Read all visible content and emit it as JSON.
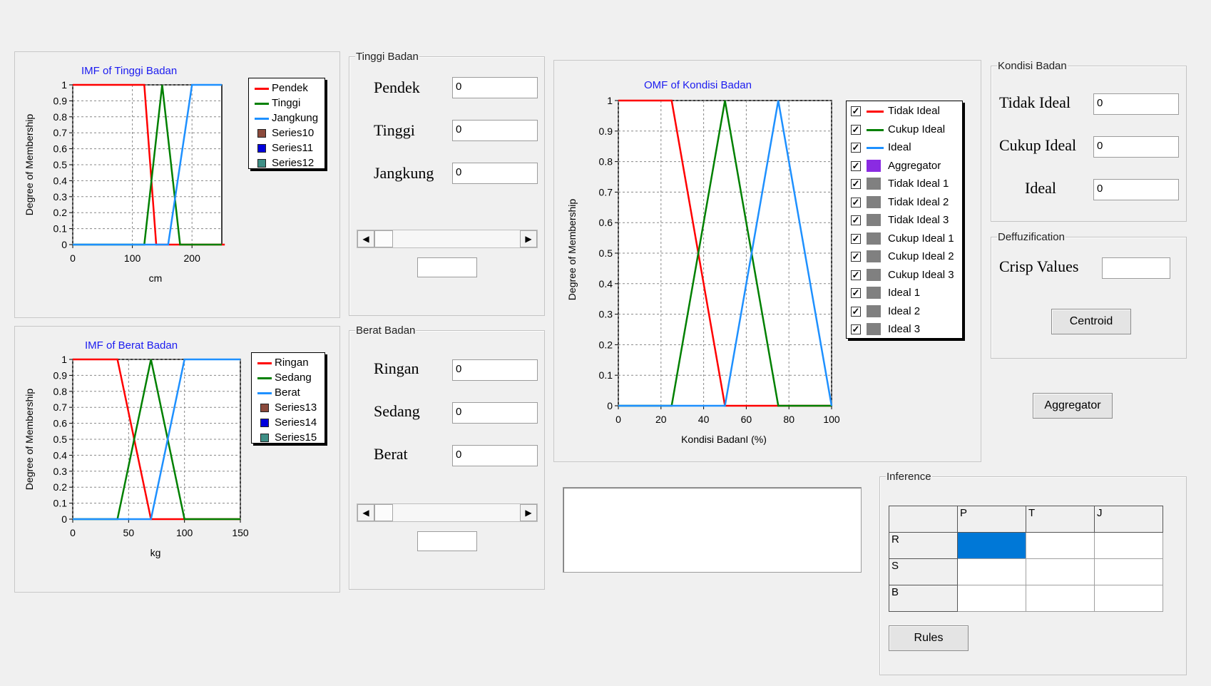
{
  "imf_tinggi": {
    "title": "IMF of Tinggi Badan",
    "xlabel": "cm",
    "ylabel": "Degree of Membership",
    "yticks": [
      "1",
      "0.9",
      "0.8",
      "0.7",
      "0.6",
      "0.5",
      "0.4",
      "0.3",
      "0.2",
      "0.1",
      "0"
    ],
    "xticks": [
      "0",
      "100",
      "200"
    ],
    "legend": [
      "Pendek",
      "Tinggi",
      "Jangkung",
      "Series10",
      "Series11",
      "Series12"
    ]
  },
  "imf_berat": {
    "title": "IMF of Berat Badan",
    "xlabel": "kg",
    "ylabel": "Degree of Membership",
    "yticks": [
      "1",
      "0.9",
      "0.8",
      "0.7",
      "0.6",
      "0.5",
      "0.4",
      "0.3",
      "0.2",
      "0.1",
      "0"
    ],
    "xticks": [
      "0",
      "50",
      "100",
      "150"
    ],
    "legend": [
      "Ringan",
      "Sedang",
      "Berat",
      "Series13",
      "Series14",
      "Series15"
    ]
  },
  "omf_kondisi": {
    "title": "OMF of Kondisi Badan",
    "xlabel": "Kondisi BadanI (%)",
    "ylabel": "Degree of Membership",
    "yticks": [
      "1",
      "0.9",
      "0.8",
      "0.7",
      "0.6",
      "0.5",
      "0.4",
      "0.3",
      "0.2",
      "0.1",
      "0"
    ],
    "xticks": [
      "0",
      "20",
      "40",
      "60",
      "80",
      "100"
    ],
    "legend": [
      "Tidak Ideal",
      "Cukup Ideal",
      "Ideal",
      "Aggregator",
      "Tidak Ideal 1",
      "Tidak Ideal 2",
      "Tidak Ideal 3",
      "Cukup Ideal 1",
      "Cukup Ideal 2",
      "Cukup Ideal 3",
      "Ideal 1",
      "Ideal 2",
      "Ideal 3"
    ]
  },
  "tinggi_group": {
    "legend": "Tinggi Badan",
    "labels": [
      "Pendek",
      "Tinggi",
      "Jangkung"
    ],
    "values": [
      "0",
      "0",
      "0"
    ],
    "extra_value": ""
  },
  "berat_group": {
    "legend": "Berat Badan",
    "labels": [
      "Ringan",
      "Sedang",
      "Berat"
    ],
    "values": [
      "0",
      "0",
      "0"
    ],
    "extra_value": ""
  },
  "kondisi_group": {
    "legend": "Kondisi Badan",
    "labels": [
      "Tidak Ideal",
      "Cukup Ideal",
      "Ideal"
    ],
    "values": [
      "0",
      "0",
      "0"
    ]
  },
  "defuzz_group": {
    "legend": "Deffuzification",
    "crisp_label": "Crisp Values",
    "crisp_value": "",
    "centroid_button": "Centroid"
  },
  "aggregator_button": "Aggregator",
  "output_text": "",
  "inference_group": {
    "legend": "Inference",
    "columns": [
      "",
      "P",
      "T",
      "J"
    ],
    "rows": [
      {
        "label": "R",
        "cells": [
          "",
          "",
          ""
        ]
      },
      {
        "label": "S",
        "cells": [
          "",
          "",
          ""
        ]
      },
      {
        "label": "B",
        "cells": [
          "",
          "",
          ""
        ]
      }
    ],
    "rules_button": "Rules"
  },
  "chart_data": [
    {
      "type": "line",
      "title": "IMF of Tinggi Badan",
      "xlabel": "cm",
      "ylabel": "Degree of Membership",
      "xlim": [
        0,
        250
      ],
      "ylim": [
        0,
        1
      ],
      "grid": true,
      "legend_position": "top-right",
      "series": [
        {
          "name": "Pendek",
          "color": "#ff0000",
          "x": [
            0,
            120,
            140,
            255
          ],
          "y": [
            1,
            1,
            0,
            0
          ]
        },
        {
          "name": "Tinggi",
          "color": "#008000",
          "x": [
            0,
            120,
            150,
            180,
            250
          ],
          "y": [
            0,
            0,
            1,
            0,
            0
          ]
        },
        {
          "name": "Jangkung",
          "color": "#1e90ff",
          "x": [
            0,
            160,
            200,
            250
          ],
          "y": [
            0,
            0,
            1,
            1
          ]
        }
      ],
      "legend": [
        {
          "name": "Pendek",
          "color": "#ff0000",
          "kind": "line"
        },
        {
          "name": "Tinggi",
          "color": "#008000",
          "kind": "line"
        },
        {
          "name": "Jangkung",
          "color": "#1e90ff",
          "kind": "line"
        },
        {
          "name": "Series10",
          "color": "#8b4a3c",
          "kind": "square"
        },
        {
          "name": "Series11",
          "color": "#0000dd",
          "kind": "square"
        },
        {
          "name": "Series12",
          "color": "#3f8f86",
          "kind": "square"
        }
      ]
    },
    {
      "type": "line",
      "title": "IMF of Berat Badan",
      "xlabel": "kg",
      "ylabel": "Degree of Membership",
      "xlim": [
        0,
        150
      ],
      "ylim": [
        0,
        1
      ],
      "grid": true,
      "legend_position": "top-right",
      "series": [
        {
          "name": "Ringan",
          "color": "#ff0000",
          "x": [
            0,
            40,
            70,
            150
          ],
          "y": [
            1,
            1,
            0,
            0
          ]
        },
        {
          "name": "Sedang",
          "color": "#008000",
          "x": [
            0,
            40,
            70,
            100,
            150
          ],
          "y": [
            0,
            0,
            1,
            0,
            0
          ]
        },
        {
          "name": "Berat",
          "color": "#1e90ff",
          "x": [
            0,
            70,
            100,
            150
          ],
          "y": [
            0,
            0,
            1,
            1
          ]
        }
      ],
      "legend": [
        {
          "name": "Ringan",
          "color": "#ff0000",
          "kind": "line"
        },
        {
          "name": "Sedang",
          "color": "#008000",
          "kind": "line"
        },
        {
          "name": "Berat",
          "color": "#1e90ff",
          "kind": "line"
        },
        {
          "name": "Series13",
          "color": "#8b4a3c",
          "kind": "square"
        },
        {
          "name": "Series14",
          "color": "#0000dd",
          "kind": "square"
        },
        {
          "name": "Series15",
          "color": "#3f8f86",
          "kind": "square"
        }
      ]
    },
    {
      "type": "line",
      "title": "OMF of Kondisi Badan",
      "xlabel": "Kondisi BadanI (%)",
      "ylabel": "Degree of Membership",
      "xlim": [
        0,
        100
      ],
      "ylim": [
        0,
        1
      ],
      "grid": true,
      "legend_position": "top-right",
      "series": [
        {
          "name": "Tidak Ideal",
          "color": "#ff0000",
          "x": [
            0,
            25,
            50,
            100
          ],
          "y": [
            1,
            1,
            0,
            0
          ]
        },
        {
          "name": "Cukup Ideal",
          "color": "#008000",
          "x": [
            0,
            25,
            50,
            75,
            100
          ],
          "y": [
            0,
            0,
            1,
            0,
            0
          ]
        },
        {
          "name": "Ideal",
          "color": "#1e90ff",
          "x": [
            0,
            50,
            75,
            100
          ],
          "y": [
            0,
            0,
            1,
            0
          ]
        }
      ],
      "legend": [
        {
          "name": "Tidak Ideal",
          "color": "#ff0000",
          "kind": "line"
        },
        {
          "name": "Cukup Ideal",
          "color": "#008000",
          "kind": "line"
        },
        {
          "name": "Ideal",
          "color": "#1e90ff",
          "kind": "line"
        },
        {
          "name": "Aggregator",
          "color": "#8a2be2",
          "kind": "square"
        },
        {
          "name": "Tidak Ideal 1",
          "color": "#808080",
          "kind": "square"
        },
        {
          "name": "Tidak Ideal 2",
          "color": "#808080",
          "kind": "square"
        },
        {
          "name": "Tidak Ideal 3",
          "color": "#808080",
          "kind": "square"
        },
        {
          "name": "Cukup Ideal 1",
          "color": "#808080",
          "kind": "square"
        },
        {
          "name": "Cukup Ideal 2",
          "color": "#808080",
          "kind": "square"
        },
        {
          "name": "Cukup Ideal 3",
          "color": "#808080",
          "kind": "square"
        },
        {
          "name": "Ideal 1",
          "color": "#808080",
          "kind": "square"
        },
        {
          "name": "Ideal 2",
          "color": "#808080",
          "kind": "square"
        },
        {
          "name": "Ideal 3",
          "color": "#808080",
          "kind": "square"
        }
      ]
    }
  ]
}
